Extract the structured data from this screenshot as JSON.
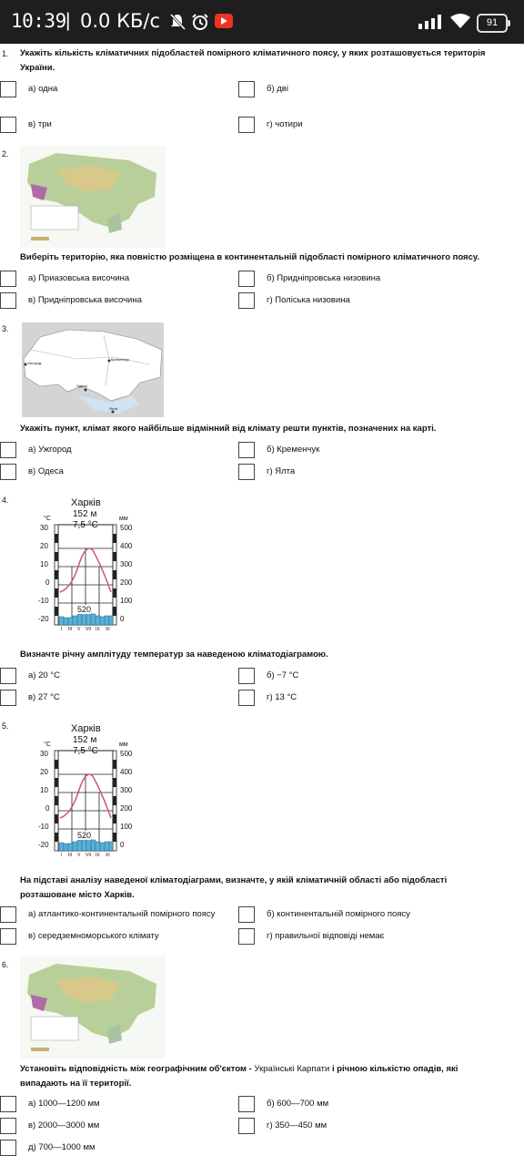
{
  "status_bar": {
    "time": "10:39",
    "separator": "|",
    "speed": "0.0 КБ/с",
    "battery": "91"
  },
  "questions": [
    {
      "number": "1.",
      "text": "Укажіть кількість кліматичних підобластей помірного кліматичного поясу, у яких розташовується територія України.",
      "options": [
        "а) одна",
        "б) дві",
        "в) три",
        "г) чотири"
      ]
    },
    {
      "number": "2.",
      "text": "Виберіть територію, яка повністю розміщена в континентальній підобласті помірного кліматичного поясу.",
      "options": [
        "а) Приазовська височина",
        "б) Придніпровська низовина",
        "в) Придніпровська височина",
        "г) Поліська низовина"
      ]
    },
    {
      "number": "3.",
      "text": "Укажіть пункт, клімат якого найбільше відмінний від клімату решти пунктів, позначених на карті.",
      "options": [
        "а) Ужгород",
        "б) Кременчук",
        "в) Одеса",
        "г) Ялта"
      ]
    },
    {
      "number": "4.",
      "text": "Визначте річну амплітуду температур за наведеною кліматодіаграмою.",
      "options": [
        "а) 20 °С",
        "б) −7 °С",
        "в) 27 °С",
        "г) 13 °С"
      ]
    },
    {
      "number": "5.",
      "text": "На підставі аналізу наведеної кліматодіаграми, визначте, у якій кліматичній області або підобласті розташоване місто Харків.",
      "options": [
        "а) атлантико-континентальній помірного поясу",
        "б) континентальній помірного поясу",
        "в) середземноморського клімату",
        "г) правильної відповіді немає"
      ]
    },
    {
      "number": "6.",
      "text_bold_1": "Установіть відповідність між географічним об'єктом -",
      "text_normal": "Українські Карпати",
      "text_bold_2": "і річною кількістю опадів, які випадають на її території.",
      "options": [
        "а) 1000—1200 мм",
        "б) 600—700 мм",
        "в) 2000—3000 мм",
        "г) 350—450 мм",
        "д) 700—1000 мм"
      ]
    }
  ],
  "climatogram": {
    "city": "Харків",
    "elevation": "152 м",
    "mean_temp": "7,5 °С",
    "precip_total": "520",
    "temp_unit": "°С",
    "precip_unit": "мм",
    "temp_ticks": [
      "30",
      "20",
      "10",
      "0",
      "-10",
      "-20"
    ],
    "precip_ticks": [
      "500",
      "400",
      "300",
      "200",
      "100",
      "0"
    ],
    "month_ticks": [
      "I",
      "III",
      "V",
      "VII",
      "IX",
      "XI"
    ]
  },
  "map3_labels": [
    "Ужгород",
    "Кременчук",
    "Одеса",
    "Ялта"
  ]
}
